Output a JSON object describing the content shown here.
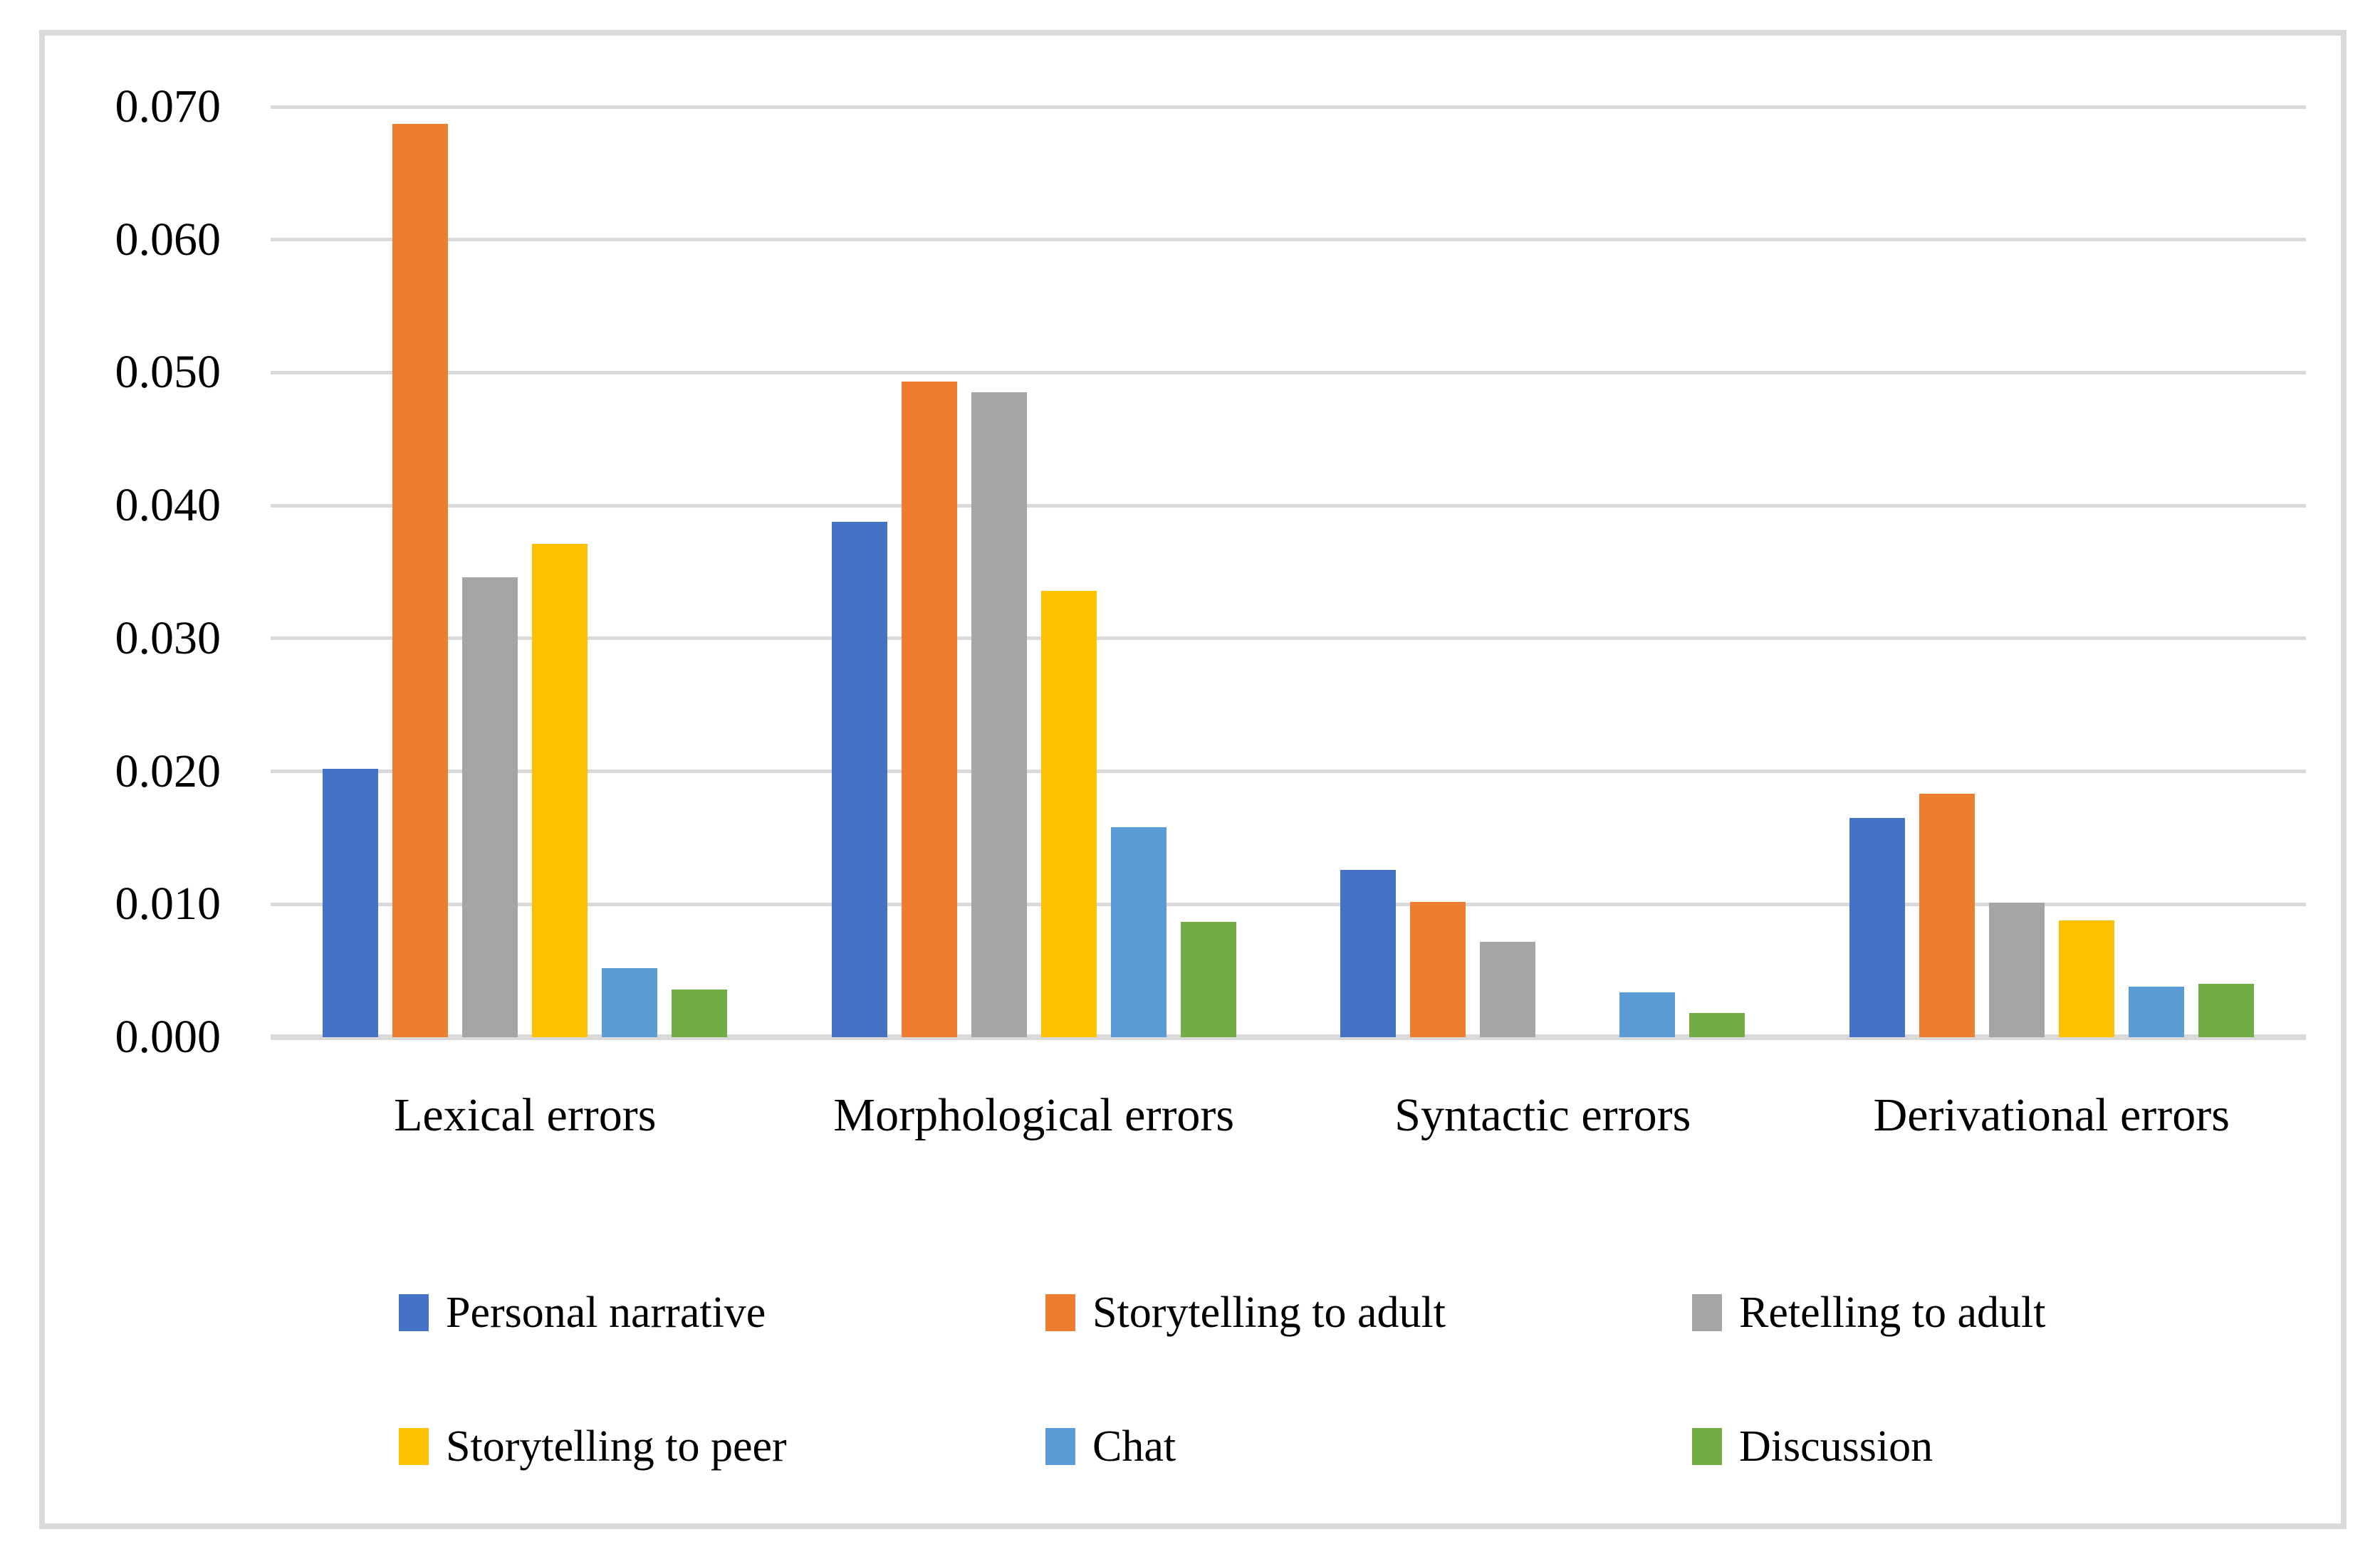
{
  "figure": {
    "background": "#ffffff",
    "border_color": "#d9d9d9",
    "text_color": "#000000"
  },
  "chart_data": {
    "type": "bar",
    "title": "",
    "xlabel": "",
    "ylabel": "",
    "categories": [
      "Lexical errors",
      "Morphological errors",
      "Syntactic errors",
      "Derivational errors"
    ],
    "series": [
      {
        "name": "Personal narrative",
        "color": "#4472C4",
        "values": [
          0.0202,
          0.0388,
          0.0126,
          0.0165
        ]
      },
      {
        "name": "Storytelling to adult",
        "color": "#ED7D31",
        "values": [
          0.0687,
          0.0493,
          0.0102,
          0.0183
        ]
      },
      {
        "name": "Retelling to adult",
        "color": "#A5A5A5",
        "values": [
          0.0346,
          0.0485,
          0.0072,
          0.0101
        ]
      },
      {
        "name": "Storytelling to peer",
        "color": "#FFC000",
        "values": [
          0.0371,
          0.0336,
          0.0,
          0.0088
        ]
      },
      {
        "name": "Chat",
        "color": "#5B9BD5",
        "values": [
          0.0052,
          0.0158,
          0.0034,
          0.0038
        ]
      },
      {
        "name": "Discussion",
        "color": "#70AD47",
        "values": [
          0.0036,
          0.0087,
          0.0018,
          0.004
        ]
      }
    ],
    "y_axis": {
      "min": 0,
      "max": 0.07,
      "step": 0.01,
      "tick_labels": [
        "0.070",
        "0.060",
        "0.050",
        "0.040",
        "0.030",
        "0.020",
        "0.010",
        "0.000"
      ]
    },
    "ylim": [
      0,
      0.07
    ],
    "grid": true,
    "gridline_color": "#d9d9d9",
    "legend_position": "bottom"
  }
}
